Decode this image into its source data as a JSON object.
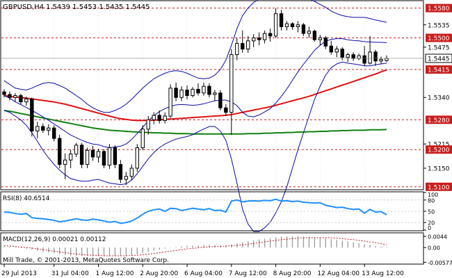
{
  "header": {
    "symbol_label": "GBPUSD,H4",
    "ohlc_label": "1.5439 1.5453 1.5435 1.5445"
  },
  "copyright": "Mill Trade, © 2001-2013, MetaQuotes Software Corp.",
  "colors": {
    "background": "#ffffff",
    "frame": "#000000",
    "grid": "#c8c8c8",
    "candle": "#000000",
    "bollinger": "#0a0aa8",
    "ma_fast": "#e01010",
    "ma_slow": "#118011",
    "level_line": "#c81e1e",
    "price_box": "#c81e1e",
    "rsi": "#1e90ff",
    "macd": "#a0a0a0",
    "macd_signal": "#c81e1e"
  },
  "price_axis": {
    "range": [
      1.5094,
      1.5598
    ],
    "ticks": [
      {
        "value": 1.5535,
        "label": "1.5535"
      },
      {
        "value": 1.5475,
        "label": "1.5475"
      },
      {
        "value": 1.534,
        "label": "1.5340"
      },
      {
        "value": 1.5215,
        "label": "1.5215"
      },
      {
        "value": 1.515,
        "label": "1.5150"
      }
    ],
    "levels": [
      {
        "value": 1.558,
        "label": "1.5580"
      },
      {
        "value": 1.55,
        "label": "1.5500"
      },
      {
        "value": 1.5415,
        "label": "1.5415"
      },
      {
        "value": 1.528,
        "label": "1.5280"
      },
      {
        "value": 1.52,
        "label": "1.5200"
      },
      {
        "value": 1.51,
        "label": "1.5100"
      }
    ],
    "current_price": {
      "value": 1.5445,
      "label": "1.5445"
    }
  },
  "time_axis": {
    "labels": [
      "29 Jul 2013",
      "31 Jul 04:00",
      "1 Aug 12:00",
      "2 Aug 20:00",
      "6 Aug 04:00",
      "7 Aug 12:00",
      "8 Aug 20:00",
      "12 Aug 04:00",
      "13 Aug 12:00"
    ],
    "label_bar_index": [
      0,
      9,
      17,
      25,
      33,
      41,
      49,
      57,
      65
    ]
  },
  "rsi": {
    "label": "RSI(8) 40.6514",
    "range": [
      0,
      100
    ],
    "ticks": [
      {
        "value": 100,
        "label": "100"
      },
      {
        "value": 80,
        "label": "80"
      },
      {
        "value": 50,
        "label": "50"
      },
      {
        "value": 20,
        "label": "20"
      },
      {
        "value": 0,
        "label": "0"
      }
    ],
    "levels": [
      80,
      50,
      20
    ]
  },
  "macd": {
    "label": "MACD(12,26,9) 0.00021 0.00112",
    "range": [
      -0.0062,
      0.0055
    ],
    "ticks": [
      {
        "value": 0.0044,
        "label": "0.0044"
      },
      {
        "value": 0.0,
        "label": "0.00"
      },
      {
        "value": -0.00577,
        "label": "-0.00577"
      }
    ]
  },
  "chart_data": {
    "type": "candlestick",
    "symbol": "GBPUSD",
    "timeframe": "H4",
    "bars": [
      {
        "o": 1.5355,
        "h": 1.5362,
        "l": 1.534,
        "c": 1.5348
      },
      {
        "o": 1.5348,
        "h": 1.5356,
        "l": 1.5332,
        "c": 1.534
      },
      {
        "o": 1.534,
        "h": 1.5352,
        "l": 1.5328,
        "c": 1.5345
      },
      {
        "o": 1.5345,
        "h": 1.535,
        "l": 1.532,
        "c": 1.5328
      },
      {
        "o": 1.5328,
        "h": 1.5342,
        "l": 1.5318,
        "c": 1.5336
      },
      {
        "o": 1.5336,
        "h": 1.534,
        "l": 1.5235,
        "c": 1.525
      },
      {
        "o": 1.525,
        "h": 1.5275,
        "l": 1.523,
        "c": 1.5262
      },
      {
        "o": 1.5262,
        "h": 1.527,
        "l": 1.5245,
        "c": 1.5252
      },
      {
        "o": 1.5252,
        "h": 1.5268,
        "l": 1.5238,
        "c": 1.5258
      },
      {
        "o": 1.5258,
        "h": 1.5265,
        "l": 1.5222,
        "c": 1.523
      },
      {
        "o": 1.523,
        "h": 1.524,
        "l": 1.515,
        "c": 1.516
      },
      {
        "o": 1.516,
        "h": 1.519,
        "l": 1.512,
        "c": 1.5172
      },
      {
        "o": 1.5172,
        "h": 1.52,
        "l": 1.515,
        "c": 1.5188
      },
      {
        "o": 1.5188,
        "h": 1.5218,
        "l": 1.518,
        "c": 1.5212
      },
      {
        "o": 1.5212,
        "h": 1.5218,
        "l": 1.515,
        "c": 1.516
      },
      {
        "o": 1.516,
        "h": 1.5205,
        "l": 1.515,
        "c": 1.5198
      },
      {
        "o": 1.5198,
        "h": 1.521,
        "l": 1.517,
        "c": 1.518
      },
      {
        "o": 1.518,
        "h": 1.5202,
        "l": 1.5165,
        "c": 1.5195
      },
      {
        "o": 1.5195,
        "h": 1.52,
        "l": 1.515,
        "c": 1.5158
      },
      {
        "o": 1.5158,
        "h": 1.5215,
        "l": 1.5148,
        "c": 1.5205
      },
      {
        "o": 1.5205,
        "h": 1.5212,
        "l": 1.515,
        "c": 1.516
      },
      {
        "o": 1.516,
        "h": 1.5172,
        "l": 1.511,
        "c": 1.512
      },
      {
        "o": 1.512,
        "h": 1.514,
        "l": 1.5105,
        "c": 1.5128
      },
      {
        "o": 1.5128,
        "h": 1.516,
        "l": 1.5118,
        "c": 1.515
      },
      {
        "o": 1.515,
        "h": 1.5215,
        "l": 1.514,
        "c": 1.5205
      },
      {
        "o": 1.5205,
        "h": 1.5265,
        "l": 1.5198,
        "c": 1.5255
      },
      {
        "o": 1.5255,
        "h": 1.529,
        "l": 1.524,
        "c": 1.528
      },
      {
        "o": 1.528,
        "h": 1.53,
        "l": 1.5268,
        "c": 1.5292
      },
      {
        "o": 1.5292,
        "h": 1.5305,
        "l": 1.527,
        "c": 1.5278
      },
      {
        "o": 1.5278,
        "h": 1.53,
        "l": 1.527,
        "c": 1.529
      },
      {
        "o": 1.529,
        "h": 1.5375,
        "l": 1.5285,
        "c": 1.5365
      },
      {
        "o": 1.5365,
        "h": 1.538,
        "l": 1.533,
        "c": 1.534
      },
      {
        "o": 1.534,
        "h": 1.537,
        "l": 1.533,
        "c": 1.536
      },
      {
        "o": 1.536,
        "h": 1.5372,
        "l": 1.5335,
        "c": 1.5345
      },
      {
        "o": 1.5345,
        "h": 1.5368,
        "l": 1.534,
        "c": 1.5362
      },
      {
        "o": 1.5362,
        "h": 1.5378,
        "l": 1.5345,
        "c": 1.5352
      },
      {
        "o": 1.5352,
        "h": 1.538,
        "l": 1.5345,
        "c": 1.537
      },
      {
        "o": 1.537,
        "h": 1.5378,
        "l": 1.534,
        "c": 1.5348
      },
      {
        "o": 1.5348,
        "h": 1.536,
        "l": 1.533,
        "c": 1.5352
      },
      {
        "o": 1.5352,
        "h": 1.536,
        "l": 1.5305,
        "c": 1.5312
      },
      {
        "o": 1.5312,
        "h": 1.5322,
        "l": 1.529,
        "c": 1.53
      },
      {
        "o": 1.53,
        "h": 1.547,
        "l": 1.524,
        "c": 1.5455
      },
      {
        "o": 1.5455,
        "h": 1.55,
        "l": 1.544,
        "c": 1.5485
      },
      {
        "o": 1.5485,
        "h": 1.552,
        "l": 1.546,
        "c": 1.547
      },
      {
        "o": 1.547,
        "h": 1.5505,
        "l": 1.546,
        "c": 1.5492
      },
      {
        "o": 1.5492,
        "h": 1.551,
        "l": 1.5475,
        "c": 1.55
      },
      {
        "o": 1.55,
        "h": 1.5515,
        "l": 1.548,
        "c": 1.5495
      },
      {
        "o": 1.5495,
        "h": 1.552,
        "l": 1.5485,
        "c": 1.5512
      },
      {
        "o": 1.5512,
        "h": 1.5525,
        "l": 1.549,
        "c": 1.5505
      },
      {
        "o": 1.5505,
        "h": 1.558,
        "l": 1.55,
        "c": 1.5565
      },
      {
        "o": 1.5565,
        "h": 1.5575,
        "l": 1.552,
        "c": 1.553
      },
      {
        "o": 1.553,
        "h": 1.5545,
        "l": 1.552,
        "c": 1.5538
      },
      {
        "o": 1.5538,
        "h": 1.5542,
        "l": 1.5522,
        "c": 1.553
      },
      {
        "o": 1.553,
        "h": 1.5545,
        "l": 1.5515,
        "c": 1.5535
      },
      {
        "o": 1.5535,
        "h": 1.554,
        "l": 1.5505,
        "c": 1.5512
      },
      {
        "o": 1.5512,
        "h": 1.553,
        "l": 1.55,
        "c": 1.5518
      },
      {
        "o": 1.5518,
        "h": 1.5522,
        "l": 1.549,
        "c": 1.5495
      },
      {
        "o": 1.5495,
        "h": 1.5508,
        "l": 1.548,
        "c": 1.55
      },
      {
        "o": 1.55,
        "h": 1.5505,
        "l": 1.547,
        "c": 1.5478
      },
      {
        "o": 1.5478,
        "h": 1.5492,
        "l": 1.5455,
        "c": 1.5462
      },
      {
        "o": 1.5462,
        "h": 1.5478,
        "l": 1.5448,
        "c": 1.547
      },
      {
        "o": 1.547,
        "h": 1.5475,
        "l": 1.544,
        "c": 1.5448
      },
      {
        "o": 1.5448,
        "h": 1.546,
        "l": 1.5435,
        "c": 1.5455
      },
      {
        "o": 1.5455,
        "h": 1.5462,
        "l": 1.5438,
        "c": 1.5445
      },
      {
        "o": 1.5445,
        "h": 1.5458,
        "l": 1.544,
        "c": 1.5452
      },
      {
        "o": 1.5452,
        "h": 1.5478,
        "l": 1.5425,
        "c": 1.5432
      },
      {
        "o": 1.5432,
        "h": 1.5505,
        "l": 1.5428,
        "c": 1.5462
      },
      {
        "o": 1.5462,
        "h": 1.5468,
        "l": 1.5425,
        "c": 1.5438
      },
      {
        "o": 1.5438,
        "h": 1.545,
        "l": 1.543,
        "c": 1.5442
      },
      {
        "o": 1.5439,
        "h": 1.5453,
        "l": 1.5435,
        "c": 1.5445
      }
    ],
    "bollinger_upper": [
      1.5385,
      1.5375,
      1.5365,
      1.5362,
      1.536,
      1.5365,
      1.5372,
      1.5378,
      1.538,
      1.5378,
      1.5372,
      1.5365,
      1.5355,
      1.5345,
      1.5335,
      1.5322,
      1.5312,
      1.5305,
      1.53,
      1.53,
      1.5305,
      1.5312,
      1.5322,
      1.5335,
      1.535,
      1.5365,
      1.5378,
      1.539,
      1.5398,
      1.5405,
      1.541,
      1.5412,
      1.541,
      1.5405,
      1.5398,
      1.5392,
      1.539,
      1.5392,
      1.54,
      1.5415,
      1.544,
      1.548,
      1.5525,
      1.556,
      1.558,
      1.5595,
      1.5605,
      1.5612,
      1.5615,
      1.562,
      1.5625,
      1.5625,
      1.5622,
      1.5618,
      1.5612,
      1.5605,
      1.5598,
      1.559,
      1.5582,
      1.5572,
      1.5565,
      1.556,
      1.5557,
      1.5555,
      1.5555,
      1.5555,
      1.5552,
      1.5548,
      1.5545,
      1.5542
    ],
    "bollinger_lower": [
      1.5305,
      1.53,
      1.529,
      1.528,
      1.5265,
      1.5245,
      1.5222,
      1.5198,
      1.5178,
      1.516,
      1.5145,
      1.5132,
      1.5122,
      1.5118,
      1.5115,
      1.5115,
      1.5118,
      1.512,
      1.5115,
      1.511,
      1.5108,
      1.5106,
      1.5108,
      1.5118,
      1.5135,
      1.5155,
      1.5175,
      1.5192,
      1.5205,
      1.5215,
      1.5222,
      1.5228,
      1.5232,
      1.5235,
      1.524,
      1.5248,
      1.5255,
      1.5262,
      1.5262,
      1.525,
      1.5225,
      1.5175,
      1.511,
      1.504,
      1.5,
      1.498,
      1.498,
      1.499,
      1.5005,
      1.503,
      1.506,
      1.51,
      1.515,
      1.52,
      1.5245,
      1.529,
      1.5335,
      1.537,
      1.54,
      1.542,
      1.543,
      1.5435,
      1.5432,
      1.543,
      1.5428,
      1.5425,
      1.5425,
      1.5428,
      1.543,
      1.5432
    ],
    "bollinger_mid": [
      1.5345,
      1.5338,
      1.5328,
      1.5321,
      1.5313,
      1.5305,
      1.5297,
      1.5288,
      1.5279,
      1.5269,
      1.5259,
      1.5249,
      1.5239,
      1.5232,
      1.5225,
      1.5219,
      1.5215,
      1.5213,
      1.5208,
      1.5205,
      1.5207,
      1.5209,
      1.5215,
      1.5227,
      1.5243,
      1.526,
      1.5277,
      1.5291,
      1.5302,
      1.531,
      1.5316,
      1.532,
      1.5321,
      1.532,
      1.5319,
      1.532,
      1.5323,
      1.5327,
      1.5331,
      1.5333,
      1.5333,
      1.5328,
      1.5318,
      1.53,
      1.529,
      1.5288,
      1.5293,
      1.5301,
      1.531,
      1.5325,
      1.5343,
      1.5363,
      1.5386,
      1.5409,
      1.5429,
      1.5448,
      1.5467,
      1.548,
      1.5491,
      1.5496,
      1.5498,
      1.5498,
      1.5495,
      1.5493,
      1.5492,
      1.549,
      1.5489,
      1.5488,
      1.5488,
      1.5487
    ],
    "ma_fast": [
      1.5345,
      1.5343,
      1.5341,
      1.534,
      1.5338,
      1.5336,
      1.5334,
      1.5332,
      1.533,
      1.5328,
      1.5325,
      1.5322,
      1.5318,
      1.5314,
      1.531,
      1.5306,
      1.5302,
      1.5298,
      1.5294,
      1.529,
      1.5286,
      1.5283,
      1.5281,
      1.5279,
      1.5278,
      1.5278,
      1.5278,
      1.5279,
      1.528,
      1.5281,
      1.5282,
      1.5283,
      1.5284,
      1.5285,
      1.5286,
      1.5287,
      1.5288,
      1.5289,
      1.529,
      1.5291,
      1.5292,
      1.5294,
      1.5297,
      1.53,
      1.5303,
      1.5306,
      1.5309,
      1.5312,
      1.5315,
      1.5319,
      1.5323,
      1.5327,
      1.5331,
      1.5335,
      1.5339,
      1.5343,
      1.5348,
      1.5353,
      1.5358,
      1.5363,
      1.5368,
      1.5373,
      1.5378,
      1.5383,
      1.5388,
      1.5393,
      1.5398,
      1.5403,
      1.5409,
      1.5414
    ],
    "ma_slow": [
      1.5305,
      1.5303,
      1.53,
      1.5297,
      1.5294,
      1.5291,
      1.5288,
      1.5285,
      1.5282,
      1.5279,
      1.5276,
      1.5273,
      1.527,
      1.5267,
      1.5264,
      1.5261,
      1.5258,
      1.5256,
      1.5254,
      1.5252,
      1.5251,
      1.525,
      1.5249,
      1.5248,
      1.5247,
      1.5246,
      1.5246,
      1.5245,
      1.5245,
      1.5244,
      1.5244,
      1.5243,
      1.5243,
      1.5243,
      1.5242,
      1.5242,
      1.5242,
      1.5242,
      1.5242,
      1.5242,
      1.5242,
      1.5242,
      1.5242,
      1.5242,
      1.5243,
      1.5243,
      1.5243,
      1.5244,
      1.5244,
      1.5245,
      1.5245,
      1.5246,
      1.5246,
      1.5247,
      1.5247,
      1.5248,
      1.5248,
      1.5249,
      1.5249,
      1.525,
      1.525,
      1.5251,
      1.5251,
      1.5252,
      1.5252,
      1.5252,
      1.5253,
      1.5253,
      1.5253,
      1.5254
    ],
    "rsi_values": [
      48,
      47,
      44,
      42,
      44,
      33,
      31,
      30,
      28,
      26,
      22,
      24,
      27,
      30,
      27,
      26,
      29,
      27,
      24,
      21,
      23,
      18,
      20,
      24,
      32,
      42,
      50,
      54,
      56,
      50,
      58,
      57,
      52,
      55,
      58,
      56,
      54,
      57,
      52,
      53,
      48,
      77,
      80,
      75,
      77,
      78,
      77,
      79,
      78,
      82,
      77,
      78,
      76,
      77,
      74,
      73,
      72,
      73,
      66,
      63,
      60,
      61,
      57,
      55,
      56,
      45,
      55,
      48,
      49,
      40.6514
    ],
    "macd_hist": [
      0.0005,
      0.0003,
      0.0001,
      -0.0002,
      -0.0004,
      -0.0008,
      -0.0012,
      -0.0016,
      -0.0019,
      -0.0022,
      -0.0026,
      -0.0029,
      -0.0031,
      -0.0032,
      -0.0033,
      -0.0034,
      -0.0034,
      -0.0034,
      -0.0034,
      -0.0034,
      -0.0033,
      -0.0033,
      -0.0032,
      -0.003,
      -0.0027,
      -0.0022,
      -0.0017,
      -0.0012,
      -0.0008,
      -0.0004,
      -0.0001,
      0.0002,
      0.0005,
      0.0007,
      0.0008,
      0.0009,
      0.001,
      0.001,
      0.001,
      0.0009,
      0.0008,
      0.0012,
      0.0016,
      0.002,
      0.0024,
      0.0028,
      0.0032,
      0.0035,
      0.0037,
      0.004,
      0.0042,
      0.0043,
      0.0044,
      0.0044,
      0.0043,
      0.0042,
      0.004,
      0.0038,
      0.0036,
      0.0033,
      0.003,
      0.0027,
      0.0024,
      0.002,
      0.0017,
      0.0013,
      0.001,
      0.0006,
      0.0004,
      0.0002
    ],
    "macd_signal": [
      0.0008,
      0.0006,
      0.0004,
      0.0002,
      0.0,
      -0.0002,
      -0.0005,
      -0.0008,
      -0.0011,
      -0.0014,
      -0.0017,
      -0.002,
      -0.0023,
      -0.0025,
      -0.0027,
      -0.0029,
      -0.003,
      -0.0031,
      -0.0032,
      -0.0032,
      -0.0032,
      -0.0032,
      -0.0032,
      -0.0031,
      -0.003,
      -0.0028,
      -0.0026,
      -0.0023,
      -0.002,
      -0.0017,
      -0.0014,
      -0.0011,
      -0.0008,
      -0.0005,
      -0.0003,
      -0.0001,
      0.0001,
      0.0003,
      0.0004,
      0.0005,
      0.0006,
      0.0007,
      0.0009,
      0.0011,
      0.0013,
      0.0016,
      0.0019,
      0.0022,
      0.0025,
      0.0028,
      0.0031,
      0.0033,
      0.0035,
      0.0037,
      0.0038,
      0.0039,
      0.0039,
      0.0039,
      0.0039,
      0.0038,
      0.0037,
      0.0035,
      0.0033,
      0.0031,
      0.0028,
      0.0025,
      0.0022,
      0.0019,
      0.0015,
      0.0011
    ]
  }
}
